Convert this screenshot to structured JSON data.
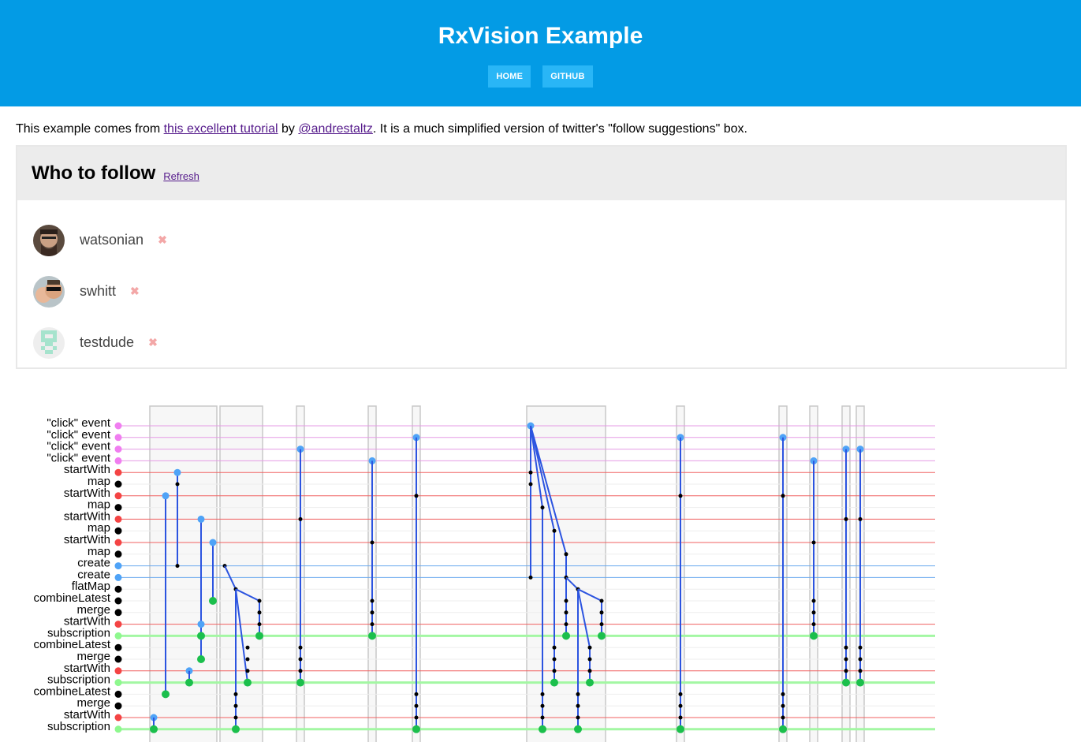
{
  "header": {
    "title": "RxVision Example",
    "nav": [
      {
        "label": "HOME"
      },
      {
        "label": "GITHUB"
      }
    ]
  },
  "intro": {
    "before": "This example comes from ",
    "link1": "this excellent tutorial",
    "middle": " by ",
    "link2": "@andrestaltz",
    "after": ". It is a much simplified version of twitter's \"follow suggestions\" box."
  },
  "panel": {
    "title": "Who to follow",
    "refresh_label": "Refresh",
    "close_glyph": "✖",
    "users": [
      {
        "name": "watsonian"
      },
      {
        "name": "swhitt"
      },
      {
        "name": "testdude"
      }
    ]
  },
  "visualizer": {
    "colors": {
      "click": "#f07ef0",
      "startWith": "#f44444",
      "map": "#000000",
      "create": "#4fa3f7",
      "flatMap": "#000000",
      "combineLatest": "#000000",
      "merge": "#000000",
      "subscription": "#8ef88e",
      "value_dot": "#4fa3f7",
      "sub_dot": "#1bbf4c",
      "link": "#2c54e0"
    },
    "lanes": [
      {
        "label": "\"click\" event",
        "kind": "click"
      },
      {
        "label": "\"click\" event",
        "kind": "click"
      },
      {
        "label": "\"click\" event",
        "kind": "click"
      },
      {
        "label": "\"click\" event",
        "kind": "click"
      },
      {
        "label": "startWith",
        "kind": "startWith"
      },
      {
        "label": "map",
        "kind": "map"
      },
      {
        "label": "startWith",
        "kind": "startWith"
      },
      {
        "label": "map",
        "kind": "map"
      },
      {
        "label": "startWith",
        "kind": "startWith"
      },
      {
        "label": "map",
        "kind": "map"
      },
      {
        "label": "startWith",
        "kind": "startWith"
      },
      {
        "label": "map",
        "kind": "map"
      },
      {
        "label": "create",
        "kind": "create"
      },
      {
        "label": "create",
        "kind": "create"
      },
      {
        "label": "flatMap",
        "kind": "flatMap"
      },
      {
        "label": "combineLatest",
        "kind": "combineLatest"
      },
      {
        "label": "merge",
        "kind": "merge"
      },
      {
        "label": "startWith",
        "kind": "startWith"
      },
      {
        "label": "subscription",
        "kind": "subscription"
      },
      {
        "label": "combineLatest",
        "kind": "combineLatest"
      },
      {
        "label": "merge",
        "kind": "merge"
      },
      {
        "label": "startWith",
        "kind": "startWith"
      },
      {
        "label": "subscription",
        "kind": "subscription"
      },
      {
        "label": "combineLatest",
        "kind": "combineLatest"
      },
      {
        "label": "merge",
        "kind": "merge"
      },
      {
        "label": "startWith",
        "kind": "startWith"
      },
      {
        "label": "subscription",
        "kind": "subscription"
      }
    ]
  }
}
